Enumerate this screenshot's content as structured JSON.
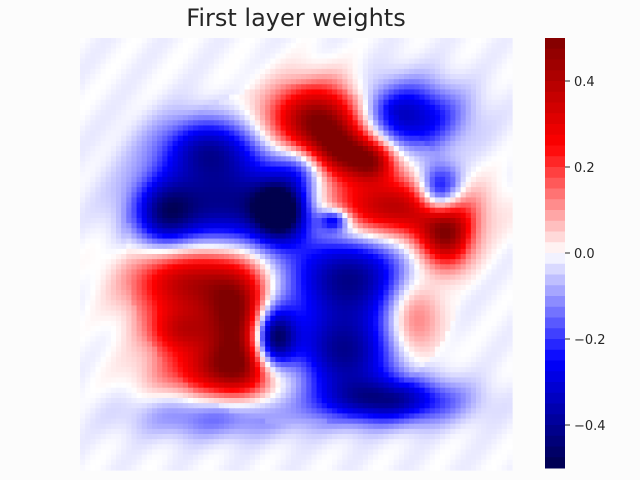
{
  "chart_data": {
    "type": "heatmap",
    "title": "First layer weights",
    "xlabel": "",
    "ylabel": "",
    "colormap": "seismic",
    "color_range": [
      -0.5,
      0.5
    ],
    "colorbar": {
      "ticks": [
        0.4,
        0.2,
        0.0,
        -0.2,
        -0.4
      ],
      "tick_labels": [
        "0.4",
        "0.2",
        "0.0",
        "−0.2",
        "−0.4"
      ]
    },
    "grid": false,
    "x_range": [
      0,
      27
    ],
    "y_range": [
      0,
      27
    ],
    "colors": {
      "negative": "#00004c",
      "zero": "#ffffff",
      "positive": "#7f0000",
      "background": "#fcfcfc"
    },
    "blobs": [
      {
        "cx": 15.0,
        "cy": 4.8,
        "sx": 2.2,
        "sy": 1.6,
        "v": 0.5
      },
      {
        "cx": 16.5,
        "cy": 7.0,
        "sx": 1.6,
        "sy": 1.2,
        "v": 0.4
      },
      {
        "cx": 14.0,
        "cy": 7.8,
        "sx": 1.2,
        "sy": 1.0,
        "v": -0.2
      },
      {
        "cx": 19.8,
        "cy": 10.5,
        "sx": 3.2,
        "sy": 1.4,
        "v": 0.4
      },
      {
        "cx": 23.2,
        "cy": 12.2,
        "sx": 1.2,
        "sy": 1.5,
        "v": 0.45
      },
      {
        "cx": 22.8,
        "cy": 9.6,
        "sx": 1.0,
        "sy": 1.2,
        "v": -0.45
      },
      {
        "cx": 20.5,
        "cy": 4.6,
        "sx": 2.4,
        "sy": 1.5,
        "v": -0.35
      },
      {
        "cx": 18.5,
        "cy": 7.5,
        "sx": 1.0,
        "sy": 0.9,
        "v": 0.3
      },
      {
        "cx": 9.0,
        "cy": 10.3,
        "sx": 3.3,
        "sy": 2.2,
        "v": -0.4
      },
      {
        "cx": 12.5,
        "cy": 10.7,
        "sx": 1.2,
        "sy": 1.3,
        "v": -0.5
      },
      {
        "cx": 7.8,
        "cy": 6.6,
        "sx": 2.2,
        "sy": 1.4,
        "v": -0.3
      },
      {
        "cx": 5.0,
        "cy": 11.0,
        "sx": 1.4,
        "sy": 1.6,
        "v": -0.3
      },
      {
        "cx": 16.0,
        "cy": 11.3,
        "sx": 0.7,
        "sy": 0.5,
        "v": -0.3
      },
      {
        "cx": 6.5,
        "cy": 15.3,
        "sx": 2.5,
        "sy": 1.8,
        "v": 0.4
      },
      {
        "cx": 9.8,
        "cy": 17.8,
        "sx": 1.5,
        "sy": 2.5,
        "v": 0.45
      },
      {
        "cx": 9.0,
        "cy": 21.0,
        "sx": 3.0,
        "sy": 1.3,
        "v": 0.35
      },
      {
        "cx": 12.0,
        "cy": 19.0,
        "sx": 1.0,
        "sy": 1.5,
        "v": -0.55
      },
      {
        "cx": 17.0,
        "cy": 15.0,
        "sx": 2.8,
        "sy": 2.0,
        "v": -0.4
      },
      {
        "cx": 16.5,
        "cy": 20.0,
        "sx": 2.5,
        "sy": 2.0,
        "v": -0.4
      },
      {
        "cx": 19.5,
        "cy": 23.0,
        "sx": 3.0,
        "sy": 1.0,
        "v": -0.35
      },
      {
        "cx": 8.5,
        "cy": 24.0,
        "sx": 3.5,
        "sy": 1.0,
        "v": -0.15
      },
      {
        "cx": 21.0,
        "cy": 17.5,
        "sx": 1.3,
        "sy": 2.0,
        "v": 0.2
      },
      {
        "cx": 6.0,
        "cy": 18.5,
        "sx": 1.5,
        "sy": 1.0,
        "v": 0.25
      }
    ]
  }
}
